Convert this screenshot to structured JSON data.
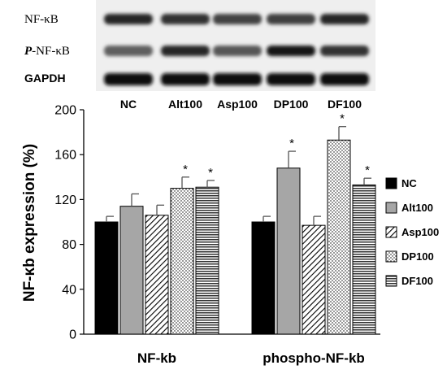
{
  "blot": {
    "row_labels": [
      {
        "prefix": "",
        "text": "NF-κB"
      },
      {
        "prefix": "P",
        "text": "-NF-κB"
      },
      {
        "prefix": "",
        "text": "GAPDH"
      }
    ],
    "lane_labels": [
      "NC",
      "Alt100",
      "Asp100",
      "DP100",
      "DF100"
    ],
    "band_intensity": [
      [
        0.85,
        0.8,
        0.7,
        0.72,
        0.85
      ],
      [
        0.55,
        0.85,
        0.6,
        0.92,
        0.8
      ],
      [
        1.0,
        1.0,
        1.0,
        1.0,
        1.0
      ]
    ]
  },
  "chart_data": {
    "type": "bar",
    "ylabel": "NF-κb expression (%)",
    "ylim": [
      0,
      200
    ],
    "yticks": [
      0,
      40,
      80,
      120,
      160,
      200
    ],
    "categories": [
      "NF-kb",
      "phospho-NF-kb"
    ],
    "series": [
      {
        "name": "NC",
        "values": [
          100,
          100
        ],
        "errors": [
          5,
          5
        ],
        "sig": [
          false,
          false
        ],
        "pattern": "solid"
      },
      {
        "name": "Alt100",
        "values": [
          114,
          148
        ],
        "errors": [
          11,
          15
        ],
        "sig": [
          false,
          true
        ],
        "pattern": "gray"
      },
      {
        "name": "Asp100",
        "values": [
          106,
          97
        ],
        "errors": [
          9,
          8
        ],
        "sig": [
          false,
          false
        ],
        "pattern": "diagonal"
      },
      {
        "name": "DP100",
        "values": [
          130,
          173
        ],
        "errors": [
          10,
          12
        ],
        "sig": [
          true,
          true
        ],
        "pattern": "dots"
      },
      {
        "name": "DF100",
        "values": [
          131,
          133
        ],
        "errors": [
          6,
          6
        ],
        "sig": [
          true,
          true
        ],
        "pattern": "hlines"
      }
    ],
    "sig_marker": "*",
    "legend_position": "right",
    "grid": false
  }
}
